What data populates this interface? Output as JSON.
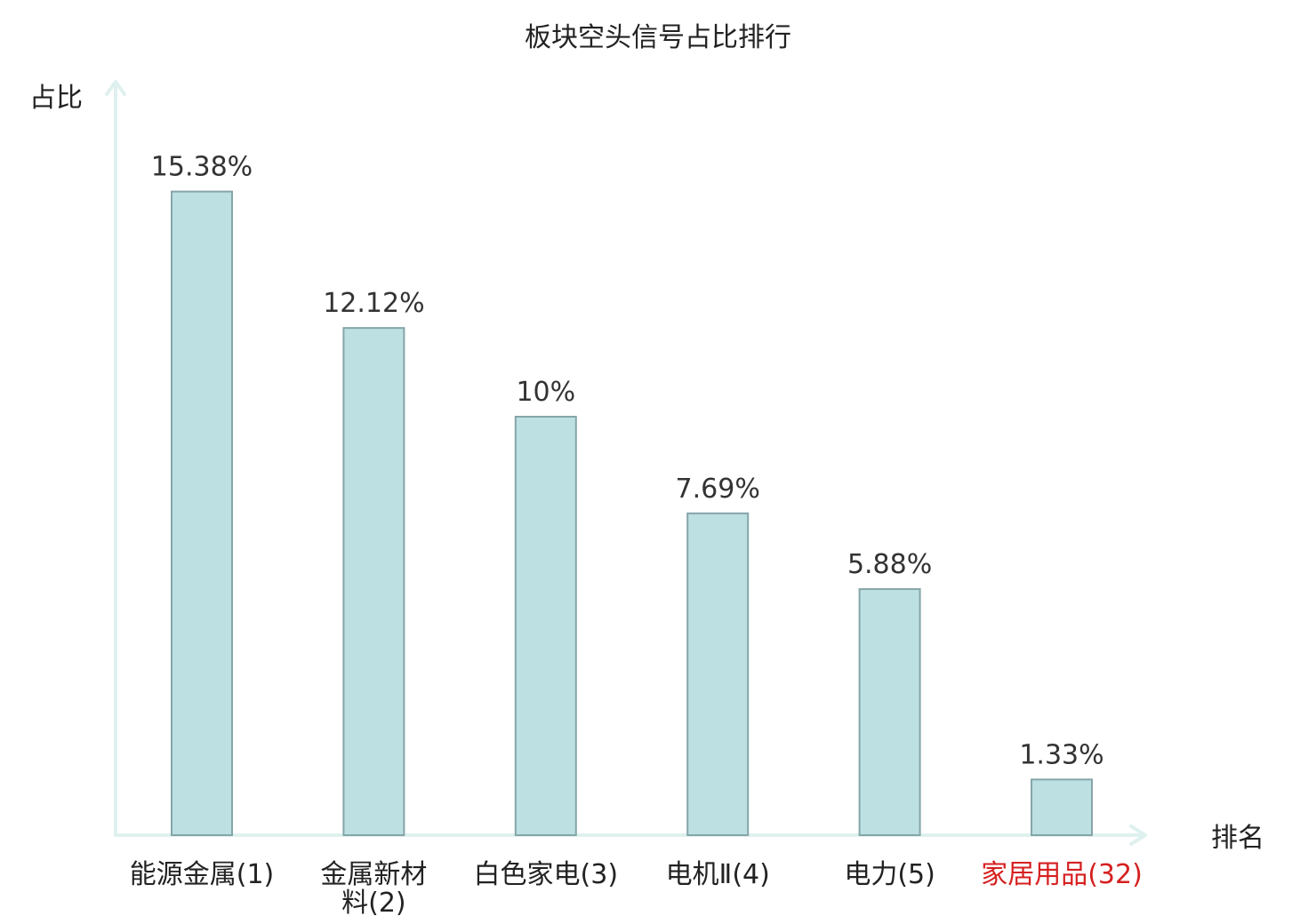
{
  "chart_data": {
    "type": "bar",
    "title": "板块空头信号占比排行",
    "ylabel": "占比",
    "xlabel": "排名",
    "categories": [
      "能源金属(1)",
      "金属新材料(2)",
      "白色家电(3)",
      "电机Ⅱ(4)",
      "电力(5)",
      "家居用品(32)"
    ],
    "category_lines": [
      [
        "能源金属(1)"
      ],
      [
        "金属新材",
        "料(2)"
      ],
      [
        "白色家电(3)"
      ],
      [
        "电机Ⅱ(4)"
      ],
      [
        "电力(5)"
      ],
      [
        "家居用品(32)"
      ]
    ],
    "values": [
      15.38,
      12.12,
      10,
      7.69,
      5.88,
      1.33
    ],
    "value_labels": [
      "15.38%",
      "12.12%",
      "10%",
      "7.69%",
      "5.88%",
      "1.33%"
    ],
    "highlight_index": 5,
    "ylim": [
      0,
      18
    ],
    "grid": false,
    "colors": {
      "bar_fill": "#bde0e3",
      "bar_stroke": "#86a5a9",
      "axis": "#dff1ee",
      "highlight": "#d62020"
    }
  }
}
